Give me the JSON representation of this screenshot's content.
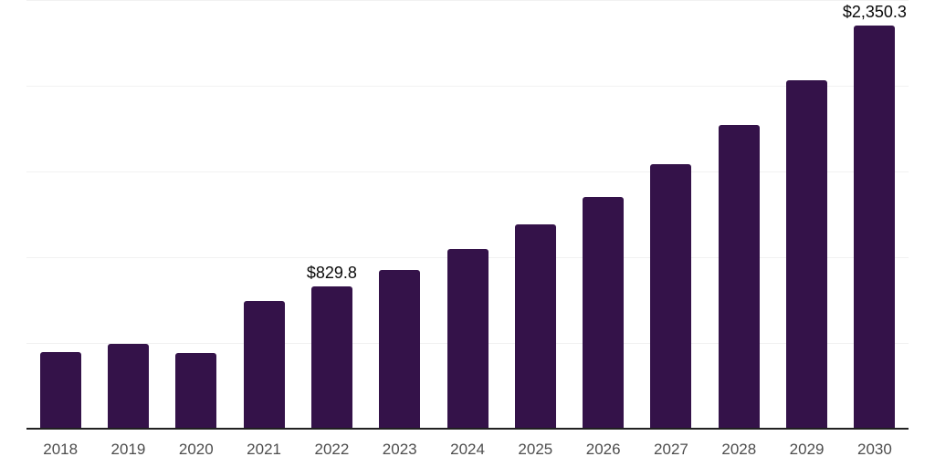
{
  "chart_data": {
    "type": "bar",
    "categories": [
      "2018",
      "2019",
      "2020",
      "2021",
      "2022",
      "2023",
      "2024",
      "2025",
      "2026",
      "2027",
      "2028",
      "2029",
      "2030"
    ],
    "values": [
      448,
      496,
      443,
      745,
      829.8,
      927,
      1050,
      1193,
      1353,
      1542,
      1770,
      2030,
      2350.3
    ],
    "data_labels": {
      "2022": "$829.8",
      "2030": "$2,350.3"
    },
    "title": "",
    "xlabel": "",
    "ylabel": "",
    "ylim": [
      0,
      2500
    ],
    "gridline_step": 500,
    "grid": true,
    "legend": "none",
    "bar_color": "#341249",
    "value_label_color": "#0a0a0a",
    "tick_label_color": "#4d4d4d",
    "axis_line_color": "#212121",
    "gridline_color": "#f1f1f1"
  }
}
